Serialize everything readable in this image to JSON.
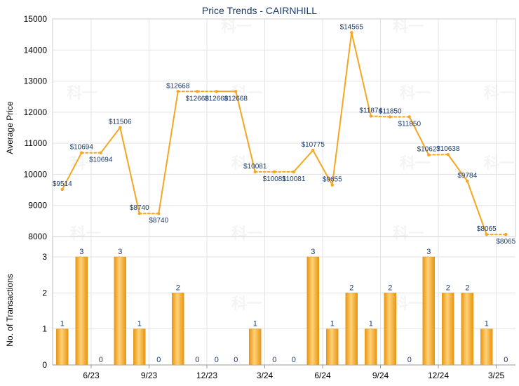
{
  "chart_data": [
    {
      "type": "line",
      "title": "Price Trends - CAIRNHILL",
      "ylabel": "Average Price",
      "xlabel": "",
      "ylim": [
        8000,
        15000
      ],
      "yticks": [
        8000,
        9000,
        10000,
        11000,
        12000,
        13000,
        14000,
        15000
      ],
      "color": "#f5a623",
      "grid": true,
      "points": [
        9514,
        10694,
        10694,
        11506,
        8740,
        8740,
        12668,
        12668,
        12668,
        12668,
        10081,
        10081,
        10081,
        10775,
        9655,
        14565,
        11874,
        11850,
        11850,
        10627,
        10638,
        9784,
        8065,
        8065
      ],
      "labels": [
        "$9514",
        "$10694",
        "$10694",
        "$11506",
        "$8740",
        "$8740",
        "$12668",
        "$12668",
        "$12668",
        "$12668",
        "$10081",
        "$10081",
        "$10081",
        "$10775",
        "$9655",
        "$14565",
        "$11874",
        "$11850",
        "$11850",
        "$10627",
        "$10638",
        "$9784",
        "$8065",
        "$8065"
      ],
      "dashed_segments": [
        [
          1,
          2
        ],
        [
          4,
          5
        ],
        [
          6,
          7
        ],
        [
          7,
          8
        ],
        [
          10,
          11
        ],
        [
          11,
          12
        ],
        [
          16,
          17
        ],
        [
          17,
          18
        ],
        [
          19,
          20
        ],
        [
          22,
          23
        ]
      ]
    },
    {
      "type": "bar",
      "ylabel": "No. of Transactions",
      "ylim": [
        0,
        3
      ],
      "yticks": [
        0,
        1,
        2,
        3
      ],
      "color": "#f5a623",
      "values": [
        1,
        3,
        0,
        3,
        1,
        0,
        2,
        0,
        0,
        0,
        1,
        0,
        0,
        3,
        1,
        2,
        1,
        2,
        0,
        3,
        2,
        2,
        1,
        0
      ],
      "xticks": [
        "6/23",
        "9/23",
        "12/23",
        "3/24",
        "6/24",
        "9/24",
        "12/24",
        "3/25"
      ]
    }
  ],
  "watermark": "科一"
}
